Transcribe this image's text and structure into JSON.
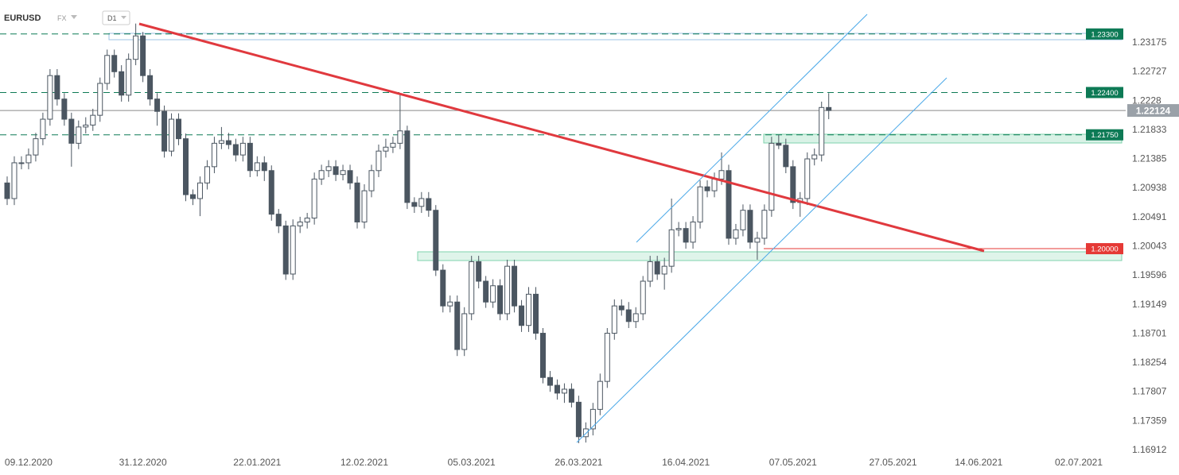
{
  "header": {
    "symbol": "EURUSD",
    "market": "FX",
    "interval": "D1"
  },
  "chart_data": {
    "type": "candlestick",
    "x": [
      "04.12.2020",
      "07.12.2020",
      "08.12.2020",
      "09.12.2020",
      "10.12.2020",
      "11.12.2020",
      "14.12.2020",
      "15.12.2020",
      "16.12.2020",
      "17.12.2020",
      "18.12.2020",
      "21.12.2020",
      "22.12.2020",
      "23.12.2020",
      "24.12.2020",
      "25.12.2020",
      "28.12.2020",
      "29.12.2020",
      "30.12.2020",
      "31.12.2020",
      "01.01.2021",
      "04.01.2021",
      "05.01.2021",
      "06.01.2021",
      "07.01.2021",
      "08.01.2021",
      "11.01.2021",
      "12.01.2021",
      "13.01.2021",
      "14.01.2021",
      "15.01.2021",
      "18.01.2021",
      "19.01.2021",
      "20.01.2021",
      "21.01.2021",
      "22.01.2021",
      "25.01.2021",
      "26.01.2021",
      "27.01.2021",
      "28.01.2021",
      "29.01.2021",
      "01.02.2021",
      "02.02.2021",
      "03.02.2021",
      "04.02.2021",
      "05.02.2021",
      "08.02.2021",
      "09.02.2021",
      "10.02.2021",
      "11.02.2021",
      "12.02.2021",
      "15.02.2021",
      "16.02.2021",
      "17.02.2021",
      "18.02.2021",
      "19.02.2021",
      "22.02.2021",
      "23.02.2021",
      "24.02.2021",
      "25.02.2021",
      "26.02.2021",
      "01.03.2021",
      "02.03.2021",
      "03.03.2021",
      "04.03.2021",
      "05.03.2021",
      "08.03.2021",
      "09.03.2021",
      "10.03.2021",
      "11.03.2021",
      "12.03.2021",
      "15.03.2021",
      "16.03.2021",
      "17.03.2021",
      "18.03.2021",
      "19.03.2021",
      "22.03.2021",
      "23.03.2021",
      "24.03.2021",
      "25.03.2021",
      "26.03.2021",
      "29.03.2021",
      "30.03.2021",
      "31.03.2021",
      "01.04.2021",
      "02.04.2021",
      "05.04.2021",
      "06.04.2021",
      "07.04.2021",
      "08.04.2021",
      "09.04.2021",
      "12.04.2021",
      "13.04.2021",
      "14.04.2021",
      "15.04.2021",
      "16.04.2021",
      "19.04.2021",
      "20.04.2021",
      "21.04.2021",
      "22.04.2021",
      "23.04.2021",
      "26.04.2021",
      "27.04.2021",
      "28.04.2021",
      "29.04.2021",
      "30.04.2021",
      "03.05.2021",
      "04.05.2021",
      "05.05.2021",
      "06.05.2021",
      "07.05.2021",
      "10.05.2021",
      "11.05.2021",
      "12.05.2021",
      "13.05.2021",
      "14.05.2021"
    ],
    "open": [
      1.2101,
      1.2077,
      1.2132,
      1.2132,
      1.2144,
      1.2169,
      1.2199,
      1.2266,
      1.223,
      1.2199,
      1.2162,
      1.2187,
      1.219,
      1.2205,
      1.2254,
      1.2297,
      1.2272,
      1.2236,
      1.2291,
      1.2327,
      1.2266,
      1.223,
      1.2211,
      1.215,
      1.2199,
      1.2169,
      1.2083,
      1.2077,
      1.2101,
      1.2126,
      1.2162,
      1.2166,
      1.216,
      1.2144,
      1.2162,
      1.212,
      1.2132,
      1.212,
      1.2053,
      1.2035,
      1.1961,
      1.2035,
      1.2041,
      1.2047,
      1.2107,
      1.212,
      1.2126,
      1.2114,
      1.212,
      1.2101,
      1.2041,
      1.2089,
      1.212,
      1.215,
      1.2156,
      1.2162,
      1.2181,
      1.2071,
      1.2065,
      1.2077,
      1.2059,
      1.1967,
      1.1912,
      1.1918,
      1.1845,
      1.19,
      1.198,
      1.195,
      1.1918,
      1.1943,
      1.19,
      1.1973,
      1.1912,
      1.1882,
      1.193,
      1.187,
      1.1802,
      1.179,
      1.1778,
      1.1784,
      1.1764,
      1.1711,
      1.1723,
      1.1753,
      1.1796,
      1.187,
      1.1912,
      1.1906,
      1.1888,
      1.19,
      1.195,
      1.198,
      1.1961,
      1.1973,
      1.2029,
      1.2031,
      1.201,
      1.2041,
      1.2095,
      1.2089,
      1.2107,
      1.212,
      1.2016,
      1.2029,
      1.2059,
      1.201,
      1.2016,
      1.2059,
      1.2162,
      1.2159,
      1.2126,
      1.2071,
      1.2077,
      1.2138,
      1.2144,
      1.2217
    ],
    "high": [
      1.2111,
      1.2142,
      1.2142,
      1.2154,
      1.2178,
      1.2209,
      1.2276,
      1.2276,
      1.2239,
      1.2209,
      1.2197,
      1.2202,
      1.2215,
      1.2263,
      1.2306,
      1.2306,
      1.2282,
      1.23,
      1.2346,
      1.2333,
      1.2276,
      1.2239,
      1.222,
      1.2208,
      1.2208,
      1.2177,
      1.2091,
      1.2111,
      1.2136,
      1.2172,
      1.2187,
      1.2178,
      1.2169,
      1.2172,
      1.2172,
      1.2142,
      1.2142,
      1.2128,
      1.2061,
      1.2043,
      1.2045,
      1.2049,
      1.2055,
      1.2117,
      1.2129,
      1.2136,
      1.2136,
      1.2129,
      1.2129,
      1.2111,
      1.2099,
      1.2129,
      1.216,
      1.2169,
      1.2172,
      1.2239,
      1.2189,
      1.2079,
      1.2087,
      1.2087,
      1.2067,
      1.1976,
      1.1928,
      1.1928,
      1.191,
      1.1989,
      1.1989,
      1.1958,
      1.1953,
      1.1953,
      1.1983,
      1.1983,
      1.1921,
      1.1941,
      1.1941,
      1.1878,
      1.1812,
      1.1799,
      1.1793,
      1.1793,
      1.1774,
      1.1733,
      1.1763,
      1.1808,
      1.1878,
      1.1922,
      1.1922,
      1.1918,
      1.191,
      1.1958,
      1.1989,
      1.1989,
      1.1986,
      1.2077,
      1.2041,
      1.2041,
      1.205,
      1.2105,
      1.2105,
      1.2117,
      1.2148,
      1.2129,
      1.2038,
      1.2068,
      1.2068,
      1.2026,
      1.2068,
      1.2172,
      1.2175,
      1.2169,
      1.2136,
      1.2087,
      1.2148,
      1.2154,
      1.2226,
      1.2239
    ],
    "low": [
      1.2067,
      1.2067,
      1.2122,
      1.2122,
      1.2134,
      1.2159,
      1.2189,
      1.222,
      1.2189,
      1.2126,
      1.2153,
      1.2177,
      1.2181,
      1.2195,
      1.2244,
      1.2263,
      1.2226,
      1.2226,
      1.2282,
      1.2256,
      1.222,
      1.2189,
      1.214,
      1.2142,
      1.2159,
      1.2073,
      1.2067,
      1.205,
      1.2091,
      1.2116,
      1.2153,
      1.2153,
      1.2134,
      1.2134,
      1.211,
      1.2111,
      1.2104,
      1.2043,
      1.2024,
      1.1952,
      1.1952,
      1.2024,
      1.2031,
      1.2037,
      1.2098,
      1.211,
      1.2104,
      1.2105,
      1.2091,
      1.2031,
      1.2031,
      1.2079,
      1.211,
      1.214,
      1.2147,
      1.2153,
      1.2061,
      1.2055,
      1.2055,
      1.2049,
      1.1958,
      1.1902,
      1.1902,
      1.1835,
      1.1835,
      1.189,
      1.1939,
      1.1909,
      1.1909,
      1.189,
      1.189,
      1.1902,
      1.1872,
      1.1872,
      1.186,
      1.1793,
      1.178,
      1.1768,
      1.1763,
      1.1756,
      1.1701,
      1.1702,
      1.1713,
      1.1744,
      1.1786,
      1.186,
      1.1897,
      1.1878,
      1.1878,
      1.189,
      1.1941,
      1.1952,
      1.1937,
      1.1963,
      1.2019,
      1.2,
      1.2,
      1.2031,
      1.2079,
      1.2079,
      1.2098,
      1.2006,
      1.2006,
      1.2019,
      1.2,
      1.1983,
      1.2006,
      1.2049,
      1.2153,
      1.2116,
      1.2061,
      1.2049,
      1.2067,
      1.2128,
      1.2134,
      1.2199
    ],
    "close": [
      1.2077,
      1.2132,
      1.2132,
      1.2144,
      1.2169,
      1.2199,
      1.2266,
      1.223,
      1.2199,
      1.2162,
      1.2187,
      1.219,
      1.2205,
      1.2254,
      1.2297,
      1.2272,
      1.2236,
      1.2291,
      1.2327,
      1.2266,
      1.223,
      1.2211,
      1.215,
      1.2199,
      1.2169,
      1.2083,
      1.2077,
      1.2101,
      1.2126,
      1.2162,
      1.2166,
      1.216,
      1.2144,
      1.2162,
      1.212,
      1.2132,
      1.212,
      1.2053,
      1.2035,
      1.1961,
      1.2035,
      1.2041,
      1.2047,
      1.2107,
      1.212,
      1.2126,
      1.2114,
      1.212,
      1.2101,
      1.2041,
      1.2089,
      1.212,
      1.215,
      1.2156,
      1.2162,
      1.2181,
      1.2071,
      1.2065,
      1.2077,
      1.2059,
      1.1967,
      1.1912,
      1.1918,
      1.1845,
      1.19,
      1.198,
      1.195,
      1.1918,
      1.1943,
      1.19,
      1.1973,
      1.1912,
      1.1882,
      1.193,
      1.187,
      1.1802,
      1.179,
      1.1778,
      1.1784,
      1.1764,
      1.1711,
      1.1723,
      1.1753,
      1.1796,
      1.187,
      1.1912,
      1.1906,
      1.1888,
      1.19,
      1.195,
      1.198,
      1.1961,
      1.1973,
      1.2029,
      1.2031,
      1.201,
      1.2041,
      1.2095,
      1.2089,
      1.2107,
      1.212,
      1.2016,
      1.2029,
      1.2059,
      1.201,
      1.2016,
      1.2059,
      1.2162,
      1.2159,
      1.2126,
      1.2071,
      1.2077,
      1.2138,
      1.2144,
      1.2217,
      1.22124
    ],
    "up_color": "#ffffff",
    "down_color": "#4b5661",
    "ylim": [
      1.16802,
      1.23822
    ],
    "yticks": [
      1.23175,
      1.22727,
      1.2228,
      1.21833,
      1.21385,
      1.20938,
      1.20491,
      1.20043,
      1.19596,
      1.19149,
      1.18701,
      1.18254,
      1.17807,
      1.17359,
      1.16912
    ],
    "xticks": [
      "09.12.2020",
      "31.12.2020",
      "22.01.2021",
      "12.02.2021",
      "05.03.2021",
      "26.03.2021",
      "16.04.2021",
      "07.05.2021",
      "27.05.2021",
      "14.06.2021",
      "02.07.2021"
    ],
    "levels": [
      {
        "value": 1.233,
        "label": "1.23300",
        "color": "#0d7a55",
        "line": "dashed"
      },
      {
        "value": 1.224,
        "label": "1.22400",
        "color": "#0d7a55",
        "line": "dashed"
      },
      {
        "value": 1.2175,
        "label": "1.21750",
        "color": "#0d7a55",
        "line": "dashed"
      },
      {
        "value": 1.2,
        "label": "1.20000",
        "color": "#e53935",
        "line": "solid"
      }
    ],
    "last_price_color": "#9aa1a8"
  }
}
